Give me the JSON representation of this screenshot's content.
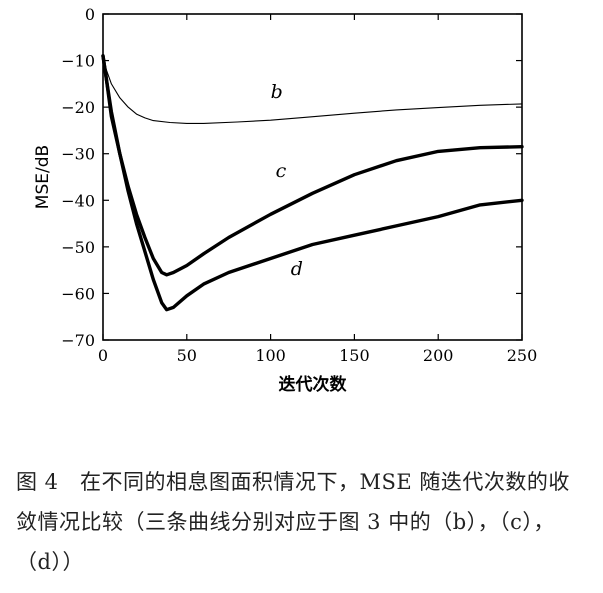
{
  "caption": "图 4　在不同的相息图面积情况下，MSE 随迭代次数的收敛情况比较（三条曲线分别对应于图 3 中的（b），（c），（d））",
  "chart_data": {
    "type": "line",
    "xlabel": "迭代次数",
    "ylabel": "MSE/dB",
    "xlim": [
      0,
      250
    ],
    "ylim": [
      -70,
      0
    ],
    "xticks": [
      0,
      50,
      100,
      150,
      200,
      250
    ],
    "yticks": [
      0,
      -10,
      -20,
      -30,
      -40,
      -50,
      -60,
      -70
    ],
    "grid": false,
    "series": [
      {
        "name": "b",
        "color": "#000000",
        "style": "thin",
        "label_at": [
          100,
          -18
        ],
        "points": [
          [
            0,
            -9
          ],
          [
            2,
            -12
          ],
          [
            5,
            -15
          ],
          [
            10,
            -18
          ],
          [
            15,
            -20
          ],
          [
            20,
            -21.5
          ],
          [
            25,
            -22.3
          ],
          [
            30,
            -22.9
          ],
          [
            40,
            -23.3
          ],
          [
            50,
            -23.5
          ],
          [
            60,
            -23.5
          ],
          [
            80,
            -23.2
          ],
          [
            100,
            -22.8
          ],
          [
            120,
            -22.2
          ],
          [
            150,
            -21.3
          ],
          [
            175,
            -20.6
          ],
          [
            200,
            -20.1
          ],
          [
            225,
            -19.6
          ],
          [
            250,
            -19.3
          ]
        ]
      },
      {
        "name": "c",
        "color": "#000000",
        "style": "thick",
        "label_at": [
          103,
          -35
        ],
        "points": [
          [
            0,
            -9
          ],
          [
            2,
            -14
          ],
          [
            5,
            -22
          ],
          [
            10,
            -30
          ],
          [
            15,
            -37
          ],
          [
            20,
            -43
          ],
          [
            25,
            -48
          ],
          [
            30,
            -52.5
          ],
          [
            35,
            -55.5
          ],
          [
            38,
            -56
          ],
          [
            42,
            -55.5
          ],
          [
            50,
            -54
          ],
          [
            60,
            -51.5
          ],
          [
            75,
            -48
          ],
          [
            100,
            -43
          ],
          [
            125,
            -38.5
          ],
          [
            150,
            -34.5
          ],
          [
            175,
            -31.5
          ],
          [
            200,
            -29.5
          ],
          [
            225,
            -28.7
          ],
          [
            250,
            -28.5
          ]
        ]
      },
      {
        "name": "d",
        "color": "#000000",
        "style": "thick",
        "label_at": [
          112,
          -56
        ],
        "points": [
          [
            0,
            -9
          ],
          [
            2,
            -14
          ],
          [
            5,
            -21
          ],
          [
            10,
            -30
          ],
          [
            15,
            -38
          ],
          [
            20,
            -45
          ],
          [
            25,
            -51
          ],
          [
            30,
            -57
          ],
          [
            35,
            -62
          ],
          [
            38,
            -63.5
          ],
          [
            42,
            -63
          ],
          [
            50,
            -60.5
          ],
          [
            60,
            -58
          ],
          [
            75,
            -55.5
          ],
          [
            100,
            -52.5
          ],
          [
            125,
            -49.5
          ],
          [
            150,
            -47.5
          ],
          [
            175,
            -45.5
          ],
          [
            200,
            -43.5
          ],
          [
            225,
            -41
          ],
          [
            250,
            -40
          ]
        ]
      }
    ]
  }
}
